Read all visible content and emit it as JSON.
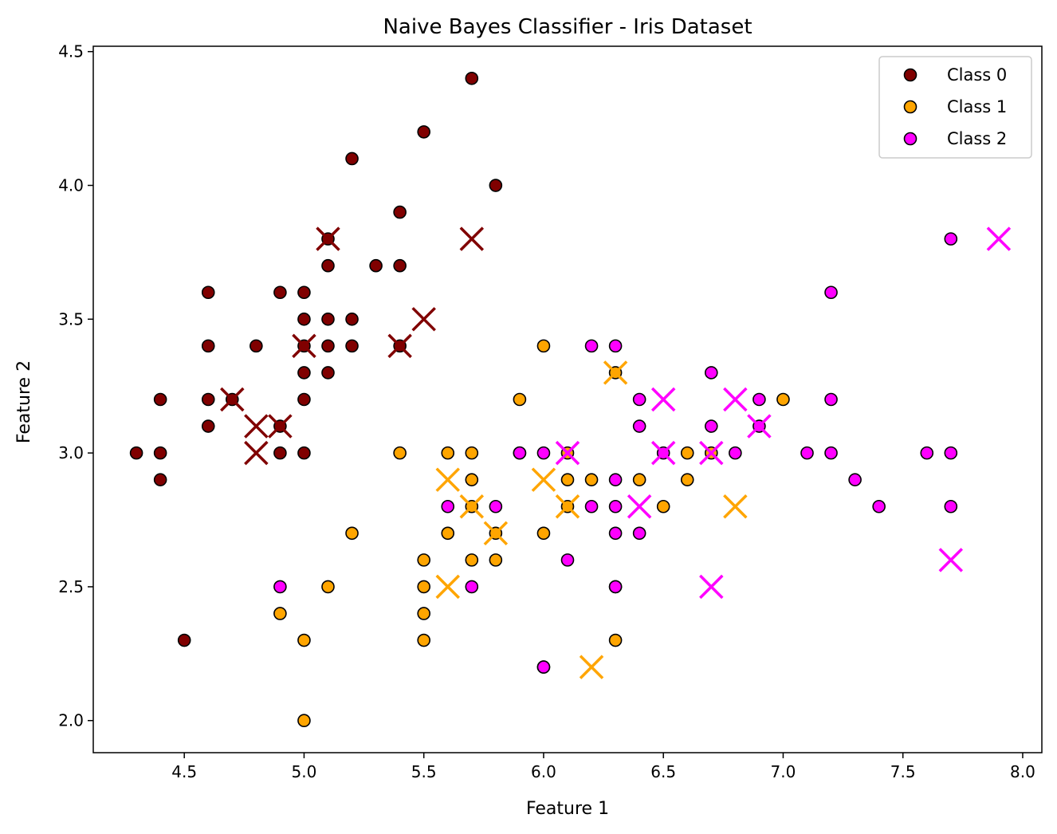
{
  "chart_data": {
    "type": "scatter",
    "title": "Naive Bayes Classifier - Iris Dataset",
    "xlabel": "Feature 1",
    "ylabel": "Feature 2",
    "xlim": [
      4.12,
      8.08
    ],
    "ylim": [
      1.88,
      4.52
    ],
    "xticks": [
      4.5,
      5.0,
      5.5,
      6.0,
      6.5,
      7.0,
      7.5,
      8.0
    ],
    "yticks": [
      2.0,
      2.5,
      3.0,
      3.5,
      4.0,
      4.5
    ],
    "grid": false,
    "legend": {
      "placement": "top-right",
      "entries": [
        {
          "label": "Class 0",
          "color": "#800000"
        },
        {
          "label": "Class 1",
          "color": "#ffa500"
        },
        {
          "label": "Class 2",
          "color": "#ff00ff"
        }
      ]
    },
    "series": [
      {
        "name": "Class 0",
        "color": "#800000",
        "marker": "circle",
        "points": [
          [
            5.7,
            4.4
          ],
          [
            5.5,
            4.2
          ],
          [
            5.2,
            4.1
          ],
          [
            5.8,
            4.0
          ],
          [
            5.4,
            3.9
          ],
          [
            5.1,
            3.8
          ],
          [
            5.1,
            3.7
          ],
          [
            5.3,
            3.7
          ],
          [
            5.4,
            3.7
          ],
          [
            4.6,
            3.6
          ],
          [
            4.9,
            3.6
          ],
          [
            5.0,
            3.6
          ],
          [
            5.0,
            3.5
          ],
          [
            5.1,
            3.5
          ],
          [
            5.2,
            3.5
          ],
          [
            4.6,
            3.4
          ],
          [
            4.8,
            3.4
          ],
          [
            5.0,
            3.4
          ],
          [
            5.1,
            3.4
          ],
          [
            5.2,
            3.4
          ],
          [
            5.4,
            3.4
          ],
          [
            5.0,
            3.3
          ],
          [
            5.1,
            3.3
          ],
          [
            4.4,
            3.2
          ],
          [
            4.6,
            3.2
          ],
          [
            4.7,
            3.2
          ],
          [
            5.0,
            3.2
          ],
          [
            4.6,
            3.1
          ],
          [
            4.9,
            3.1
          ],
          [
            4.3,
            3.0
          ],
          [
            4.4,
            3.0
          ],
          [
            4.9,
            3.0
          ],
          [
            5.0,
            3.0
          ],
          [
            4.4,
            2.9
          ],
          [
            4.5,
            2.3
          ]
        ]
      },
      {
        "name": "Class 1",
        "color": "#ffa500",
        "marker": "circle",
        "points": [
          [
            6.0,
            3.4
          ],
          [
            5.9,
            3.2
          ],
          [
            6.3,
            3.3
          ],
          [
            7.0,
            3.2
          ],
          [
            5.4,
            3.0
          ],
          [
            5.6,
            3.0
          ],
          [
            5.7,
            3.0
          ],
          [
            5.9,
            3.0
          ],
          [
            6.1,
            3.0
          ],
          [
            6.6,
            3.0
          ],
          [
            6.7,
            3.0
          ],
          [
            5.7,
            2.9
          ],
          [
            6.1,
            2.9
          ],
          [
            6.2,
            2.9
          ],
          [
            6.4,
            2.9
          ],
          [
            6.6,
            2.9
          ],
          [
            5.7,
            2.8
          ],
          [
            6.1,
            2.8
          ],
          [
            6.5,
            2.8
          ],
          [
            5.6,
            2.7
          ],
          [
            5.8,
            2.7
          ],
          [
            6.0,
            2.7
          ],
          [
            5.2,
            2.7
          ],
          [
            5.5,
            2.6
          ],
          [
            5.7,
            2.6
          ],
          [
            5.8,
            2.6
          ],
          [
            5.1,
            2.5
          ],
          [
            5.5,
            2.5
          ],
          [
            6.3,
            2.5
          ],
          [
            4.9,
            2.4
          ],
          [
            5.5,
            2.4
          ],
          [
            5.0,
            2.3
          ],
          [
            5.5,
            2.3
          ],
          [
            6.3,
            2.3
          ],
          [
            6.0,
            2.2
          ],
          [
            5.0,
            2.0
          ]
        ]
      },
      {
        "name": "Class 2",
        "color": "#ff00ff",
        "marker": "circle",
        "points": [
          [
            7.7,
            3.8
          ],
          [
            7.2,
            3.6
          ],
          [
            6.2,
            3.4
          ],
          [
            6.3,
            3.4
          ],
          [
            6.7,
            3.3
          ],
          [
            6.4,
            3.2
          ],
          [
            6.9,
            3.2
          ],
          [
            7.2,
            3.2
          ],
          [
            6.4,
            3.1
          ],
          [
            6.7,
            3.1
          ],
          [
            6.9,
            3.1
          ],
          [
            5.9,
            3.0
          ],
          [
            6.0,
            3.0
          ],
          [
            6.5,
            3.0
          ],
          [
            6.8,
            3.0
          ],
          [
            7.1,
            3.0
          ],
          [
            7.2,
            3.0
          ],
          [
            7.6,
            3.0
          ],
          [
            7.7,
            3.0
          ],
          [
            6.3,
            2.9
          ],
          [
            7.3,
            2.9
          ],
          [
            5.6,
            2.8
          ],
          [
            5.8,
            2.8
          ],
          [
            6.2,
            2.8
          ],
          [
            6.3,
            2.8
          ],
          [
            7.4,
            2.8
          ],
          [
            7.7,
            2.8
          ],
          [
            6.3,
            2.7
          ],
          [
            6.4,
            2.7
          ],
          [
            6.1,
            2.6
          ],
          [
            4.9,
            2.5
          ],
          [
            5.7,
            2.5
          ],
          [
            6.3,
            2.5
          ],
          [
            6.0,
            2.2
          ]
        ]
      },
      {
        "name": "Class 0",
        "color": "#800000",
        "marker": "x",
        "points": [
          [
            5.1,
            3.8
          ],
          [
            5.7,
            3.8
          ],
          [
            5.5,
            3.5
          ],
          [
            5.0,
            3.4
          ],
          [
            5.4,
            3.4
          ],
          [
            4.7,
            3.2
          ],
          [
            4.8,
            3.1
          ],
          [
            4.9,
            3.1
          ],
          [
            4.8,
            3.0
          ]
        ]
      },
      {
        "name": "Class 1",
        "color": "#ffa500",
        "marker": "x",
        "points": [
          [
            6.3,
            3.3
          ],
          [
            5.6,
            2.9
          ],
          [
            6.0,
            2.9
          ],
          [
            5.7,
            2.8
          ],
          [
            6.1,
            2.8
          ],
          [
            6.8,
            2.8
          ],
          [
            5.8,
            2.7
          ],
          [
            5.6,
            2.5
          ],
          [
            6.2,
            2.2
          ]
        ]
      },
      {
        "name": "Class 2",
        "color": "#ff00ff",
        "marker": "x",
        "points": [
          [
            7.9,
            3.8
          ],
          [
            6.5,
            3.2
          ],
          [
            6.8,
            3.2
          ],
          [
            6.9,
            3.1
          ],
          [
            6.1,
            3.0
          ],
          [
            6.5,
            3.0
          ],
          [
            6.7,
            3.0
          ],
          [
            6.4,
            2.8
          ],
          [
            7.7,
            2.6
          ],
          [
            6.7,
            2.5
          ]
        ]
      }
    ]
  }
}
